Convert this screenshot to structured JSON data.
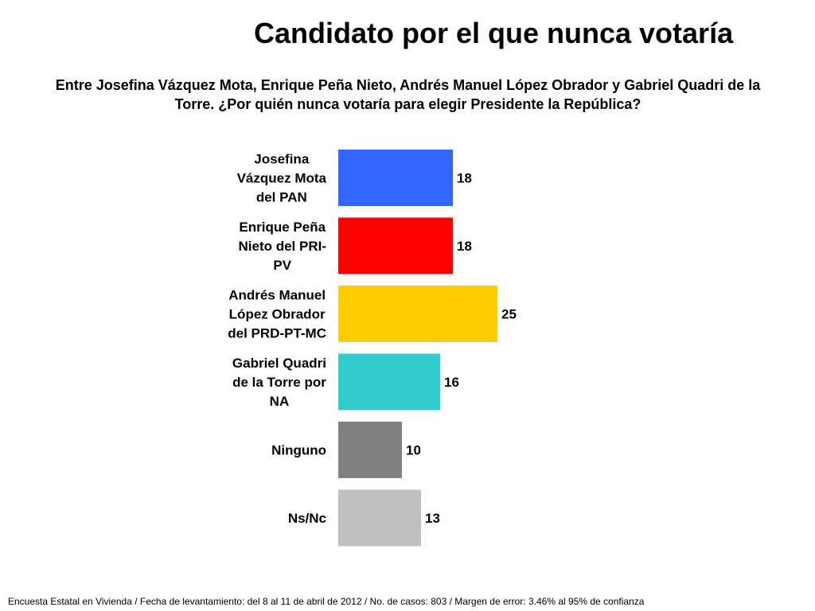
{
  "title": "Candidato por el que nunca votaría",
  "subtitle": "Entre Josefina Vázquez Mota, Enrique Peña Nieto, Andrés Manuel López Obrador y Gabriel Quadri de la Torre. ¿Por quién nunca votaría para elegir Presidente la República?",
  "footer": "Encuesta Estatal en Vivienda / Fecha de levantamiento: del  8 al 11 de abril de 2012 / No. de casos: 803 / Margen de error: 3.46% al 95% de confianza",
  "chart_data": {
    "type": "bar",
    "orientation": "horizontal",
    "title": "Candidato por el que nunca votaría",
    "categories": [
      [
        "Josefina",
        "Vázquez Mota",
        "del PAN"
      ],
      [
        "Enrique Peña",
        "Nieto del PRI-",
        "PV"
      ],
      [
        "Andrés Manuel",
        "López Obrador",
        "del PRD-PT-MC"
      ],
      [
        "Gabriel Quadri",
        "de la Torre por",
        "NA"
      ],
      [
        "Ninguno"
      ],
      [
        "Ns/Nc"
      ]
    ],
    "values": [
      18,
      18,
      25,
      16,
      10,
      13
    ],
    "colors": [
      "#3366ff",
      "#ff0000",
      "#ffcc00",
      "#33cccc",
      "#808080",
      "#c0c0c0"
    ],
    "xlabel": "",
    "ylabel": "",
    "grid": false,
    "legend": "none"
  }
}
